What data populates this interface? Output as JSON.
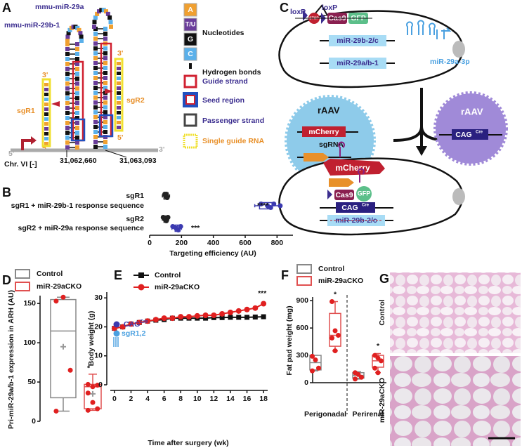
{
  "panel_labels": {
    "a": "A",
    "b": "B",
    "c": "C",
    "d": "D",
    "e": "E",
    "f": "F",
    "g": "G"
  },
  "panel_a": {
    "mir29a": "mmu-miR-29a",
    "mir29b1": "mmu-miR-29b-1",
    "sgr1": "sgR1",
    "sgr2": "sgR2",
    "sgr1_3p": "3'",
    "sgr1_5p": "5'",
    "sgr2_3p": "3'",
    "sgr2_5p": "5'",
    "strand_5p": "5'",
    "strand_3p": "3'",
    "chromosome": "Chr. VI [-]",
    "coord_1": "31,062,660",
    "coord_2": "31,063,093",
    "legend": {
      "a": "A",
      "tu": "T/U",
      "g": "G",
      "c": "C",
      "nucleotides": "Nucleotides",
      "hydrogen_bonds": "Hydrogen bonds",
      "guide_strand": "Guide strand",
      "seed_region": "Seed region",
      "passenger_strand": "Passenger strand",
      "single_guide_rna": "Single guide RNA"
    }
  },
  "panel_c": {
    "loxp_1": "loxP",
    "loxp_2": "loxP",
    "stop": "STOP",
    "cas9": "Cas9",
    "gfp": "GFP",
    "mir29b2c": "miR-29b-2/c",
    "mir29ab1": "miR-29a/b-1",
    "mir29a3p": "miR-29a-3p",
    "raav_1": "rAAV",
    "mcherry": "mCherry",
    "sgrna": "sgRNA",
    "raav_2": "rAAV",
    "cag": "CAG",
    "cre": "Cre",
    "bottom": {
      "mcherry": "mCherry",
      "cas9": "Cas9",
      "gfp": "GFP",
      "cag": "CAG",
      "cre": "Cre",
      "mir29b2c": "miR-29b-2/c"
    }
  },
  "panel_g": {
    "row_1": "Control",
    "row_2": "miR-29aCKO"
  },
  "chart_data": [
    {
      "type": "boxplot",
      "orientation": "horizontal",
      "categories": [
        "sgR1",
        "sgR1 + miR-29b-1 response sequence",
        "sgR2",
        "sgR2 + miR-29a response sequence"
      ],
      "xlabel": "Targeting efficiency (AU)",
      "xlim": [
        0,
        900
      ],
      "xticks": [
        0,
        200,
        400,
        600,
        800
      ],
      "boxes": [
        {
          "color": "#222222",
          "min": 80,
          "q1": 90,
          "median": 100,
          "q3": 115,
          "max": 125,
          "points": [
            95,
            100,
            110,
            105
          ]
        },
        {
          "color": "#3b3ab0",
          "min": 660,
          "q1": 690,
          "median": 740,
          "q3": 770,
          "max": 820,
          "points": [
            700,
            740,
            760,
            780,
            820
          ]
        },
        {
          "color": "#222222",
          "min": 80,
          "q1": 90,
          "median": 100,
          "q3": 110,
          "max": 120,
          "points": [
            85,
            95,
            105,
            115
          ]
        },
        {
          "color": "#3b3ab0",
          "min": 140,
          "q1": 160,
          "median": 175,
          "q3": 190,
          "max": 200,
          "points": [
            145,
            165,
            180,
            195
          ]
        }
      ],
      "significance": [
        null,
        "****",
        null,
        "***"
      ]
    },
    {
      "type": "boxplot",
      "orientation": "vertical",
      "ylabel": "Pri-miR-29a/b-1 expression in ARH (AU)",
      "ylim": [
        0,
        160
      ],
      "yticks": [
        0,
        50,
        100,
        150
      ],
      "series": [
        {
          "name": "Control",
          "color": "#888888",
          "min": 13,
          "q1": 30,
          "median": 115,
          "q3": 155,
          "max": 158,
          "mean": 95,
          "points": [
            153,
            158,
            65,
            13
          ]
        },
        {
          "name": "miR-29aCKO",
          "color": "#e05050",
          "min": 14,
          "q1": 16,
          "median": 44,
          "q3": 47,
          "max": 60,
          "mean": 35,
          "points": [
            47,
            44,
            46,
            36,
            24,
            16,
            14
          ]
        }
      ],
      "significance": [
        null,
        "*"
      ]
    },
    {
      "type": "line",
      "xlabel": "Time after surgery (wk)",
      "ylabel": "Body weight (g)",
      "xlim": [
        -0.5,
        18.5
      ],
      "xticks": [
        0,
        2,
        4,
        6,
        8,
        10,
        12,
        14,
        16,
        18
      ],
      "ylim": [
        0,
        32
      ],
      "yticks": [
        0,
        10,
        20,
        30
      ],
      "x": [
        0,
        1,
        2,
        3,
        4,
        5,
        6,
        7,
        8,
        9,
        10,
        11,
        12,
        13,
        14,
        15,
        16,
        17,
        18
      ],
      "series": [
        {
          "name": "Control",
          "color": "#111111",
          "marker": "square",
          "values": [
            19.5,
            20,
            21,
            21.5,
            22,
            22.3,
            22.5,
            23,
            23,
            23,
            23,
            23,
            23.2,
            23.2,
            23.3,
            23.3,
            23.3,
            23.4,
            23.5
          ]
        },
        {
          "name": "miR-29aCKO",
          "color": "#e02020",
          "marker": "circle",
          "values": [
            19.5,
            20,
            21,
            21.5,
            22,
            22.5,
            23,
            23,
            23.5,
            23.5,
            23.8,
            24,
            24,
            24.5,
            25,
            25.5,
            26,
            26.5,
            28
          ]
        }
      ],
      "annotations": {
        "cag": "CAG",
        "cre": "Cre",
        "sg": "sgR1,2",
        "significance": "***"
      }
    },
    {
      "type": "boxplot",
      "orientation": "vertical",
      "ylabel": "Fat pad weight (mg)",
      "categories": [
        "Perigonadal",
        "Perirenal"
      ],
      "ylim": [
        0,
        940
      ],
      "yticks": [
        0,
        300,
        600,
        900
      ],
      "series": [
        {
          "name": "Control",
          "color": "#888888",
          "boxes": [
            {
              "min": 130,
              "q1": 140,
              "median": 220,
              "q3": 300,
              "max": 300,
              "points": [
                290,
                250,
                160,
                130
              ]
            },
            {
              "min": 40,
              "q1": 50,
              "median": 80,
              "q3": 110,
              "max": 120,
              "points": [
                110,
                90,
                60,
                40
              ]
            }
          ],
          "significance": [
            null,
            null
          ]
        },
        {
          "name": "miR-29aCKO",
          "color": "#e05050",
          "boxes": [
            {
              "min": 350,
              "q1": 400,
              "median": 520,
              "q3": 760,
              "max": 890,
              "points": [
                890,
                570,
                520,
                490,
                350
              ]
            },
            {
              "min": 110,
              "q1": 170,
              "median": 240,
              "q3": 300,
              "max": 320,
              "points": [
                300,
                270,
                240,
                160,
                110
              ]
            }
          ],
          "significance": [
            "*",
            "*"
          ]
        }
      ]
    }
  ]
}
